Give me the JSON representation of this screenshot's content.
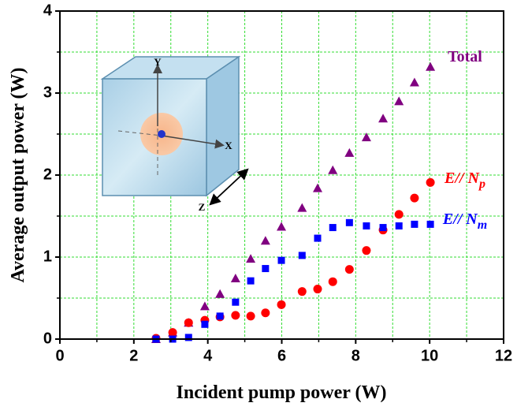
{
  "chart_data": {
    "type": "scatter",
    "xlabel": "Incident pump power (W)",
    "ylabel": "Average output power (W)",
    "xlim": [
      0,
      12
    ],
    "xticks": [
      0,
      2,
      4,
      6,
      8,
      10,
      12
    ],
    "x_minor_ticks": [
      1,
      3,
      5,
      7,
      9,
      11
    ],
    "ylim": [
      0,
      4
    ],
    "yticks": [
      0,
      1,
      2,
      3,
      4
    ],
    "y_minor_ticks": [
      0.5,
      1.5,
      2.5,
      3.5
    ],
    "grid": true,
    "grid_color": "#33dd33",
    "x": [
      2.6,
      3.05,
      3.48,
      3.92,
      4.33,
      4.75,
      5.16,
      5.56,
      5.99,
      6.55,
      6.97,
      7.38,
      7.83,
      8.29,
      8.74,
      9.17,
      9.59,
      10.02
    ],
    "series": [
      {
        "name": "Total",
        "color": "#800080",
        "marker": "triangle",
        "values": [
          0.0,
          0.08,
          0.2,
          0.4,
          0.55,
          0.74,
          0.98,
          1.2,
          1.37,
          1.6,
          1.84,
          2.06,
          2.27,
          2.46,
          2.69,
          2.9,
          3.13,
          3.32
        ]
      },
      {
        "name": "E// N",
        "name_subscript": "p",
        "color": "#ff0000",
        "marker": "circle",
        "values": [
          0.01,
          0.08,
          0.2,
          0.23,
          0.27,
          0.29,
          0.28,
          0.32,
          0.42,
          0.58,
          0.61,
          0.7,
          0.85,
          1.08,
          1.33,
          1.52,
          1.72,
          1.91
        ]
      },
      {
        "name": "E// N",
        "name_subscript": "m",
        "color": "#0000ff",
        "marker": "square",
        "values": [
          0.0,
          0.0,
          0.02,
          0.18,
          0.28,
          0.45,
          0.71,
          0.86,
          0.96,
          1.02,
          1.23,
          1.36,
          1.42,
          1.38,
          1.36,
          1.38,
          1.4,
          1.4
        ]
      }
    ],
    "inset": {
      "labels": [
        "Y",
        "X",
        "Z"
      ]
    }
  }
}
